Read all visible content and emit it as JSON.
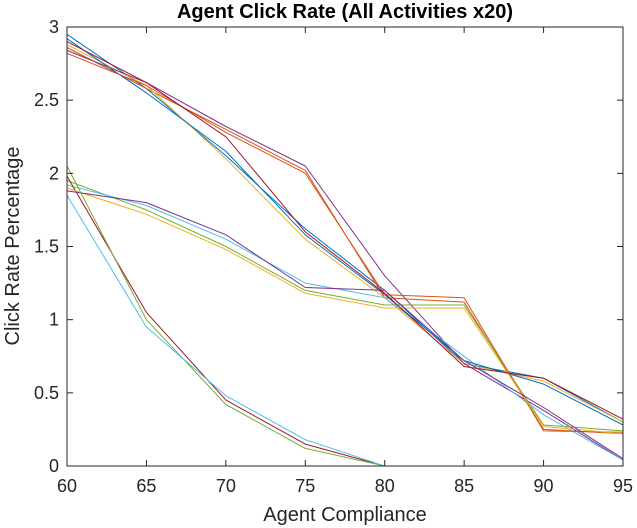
{
  "chart_data": {
    "type": "line",
    "title": "Agent Click Rate  (All Activities x20)",
    "xlabel": "Agent Compliance",
    "ylabel": "Click Rate Percentage",
    "xlim": [
      60,
      95
    ],
    "ylim": [
      0,
      3
    ],
    "xticks": [
      "60",
      "65",
      "70",
      "75",
      "80",
      "85",
      "90",
      "95"
    ],
    "yticks": [
      "0",
      "0.5",
      "1",
      "1.5",
      "2",
      "2.5",
      "3"
    ],
    "grid": false,
    "legend": "none",
    "colors": [
      "#0072BD",
      "#D95319",
      "#EDB120",
      "#7E2F8E",
      "#77AC30",
      "#4DBEEE",
      "#A2142F"
    ],
    "x": [
      60,
      65,
      70,
      75,
      80,
      85,
      90,
      95
    ],
    "series": [
      {
        "values": [
          2.95,
          2.58,
          2.12,
          1.62,
          1.2,
          0.7,
          0.6,
          0.3
        ]
      },
      {
        "values": [
          2.86,
          2.58,
          2.3,
          2.02,
          1.15,
          1.12,
          0.25,
          0.22
        ]
      },
      {
        "values": [
          2.88,
          2.6,
          2.1,
          1.55,
          1.15,
          0.7,
          0.58,
          0.3
        ]
      },
      {
        "values": [
          2.84,
          2.62,
          2.32,
          2.05,
          1.3,
          0.7,
          0.38,
          0.04
        ]
      },
      {
        "values": [
          1.95,
          1.75,
          1.5,
          1.2,
          1.1,
          1.1,
          0.28,
          0.24
        ]
      },
      {
        "values": [
          1.92,
          1.78,
          1.55,
          1.25,
          1.15,
          0.75,
          0.35,
          0.04
        ]
      },
      {
        "values": [
          1.98,
          1.05,
          0.45,
          0.15,
          0.0,
          0.0,
          0.0,
          0.0
        ]
      },
      {
        "values": [
          2.92,
          2.55,
          2.15,
          1.58,
          1.17,
          0.72,
          0.56,
          0.28
        ]
      },
      {
        "values": [
          2.82,
          2.6,
          2.28,
          2.0,
          1.17,
          1.15,
          0.24,
          0.23
        ]
      },
      {
        "values": [
          1.9,
          1.72,
          1.48,
          1.18,
          1.08,
          1.08,
          0.27,
          0.22
        ]
      },
      {
        "values": [
          1.88,
          1.8,
          1.58,
          1.22,
          1.2,
          0.72,
          0.4,
          0.05
        ]
      },
      {
        "values": [
          2.05,
          1.0,
          0.42,
          0.12,
          0.0,
          0.0,
          0.0,
          0.0
        ]
      },
      {
        "values": [
          1.85,
          0.95,
          0.48,
          0.18,
          0.0,
          0.0,
          0.0,
          0.0
        ]
      },
      {
        "values": [
          2.9,
          2.62,
          2.25,
          1.6,
          1.18,
          0.68,
          0.6,
          0.32
        ]
      }
    ]
  }
}
